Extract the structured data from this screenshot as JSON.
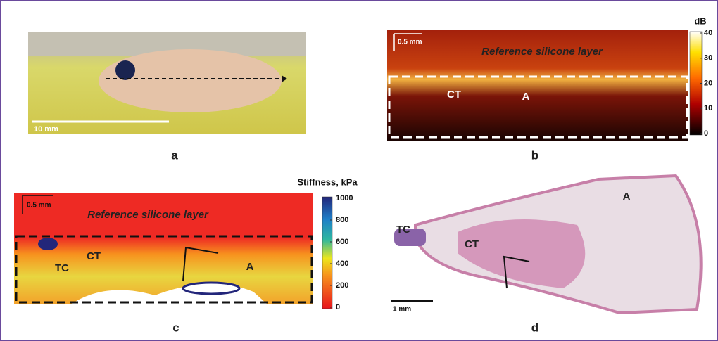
{
  "panels": [
    {
      "label": "a",
      "scale_bar": "10 mm"
    },
    {
      "label": "b",
      "scale_bar": "0.5 mm",
      "caption": "Reference silicone layer",
      "annotations": [
        "CT",
        "A"
      ],
      "colorbar": {
        "title": "dB",
        "range": [
          0,
          40
        ],
        "ticks": [
          0,
          10,
          20,
          30,
          40
        ]
      }
    },
    {
      "label": "c",
      "scale_bar": "0.5 mm",
      "caption": "Reference silicone layer",
      "annotations": [
        "TC",
        "CT",
        "A"
      ],
      "colorbar": {
        "title": "Stiffness, kPa",
        "range": [
          0,
          1000
        ],
        "ticks": [
          0,
          200,
          400,
          600,
          800,
          1000
        ]
      }
    },
    {
      "label": "d",
      "scale_bar": "1 mm",
      "annotations": [
        "TC",
        "CT",
        "A"
      ]
    }
  ]
}
